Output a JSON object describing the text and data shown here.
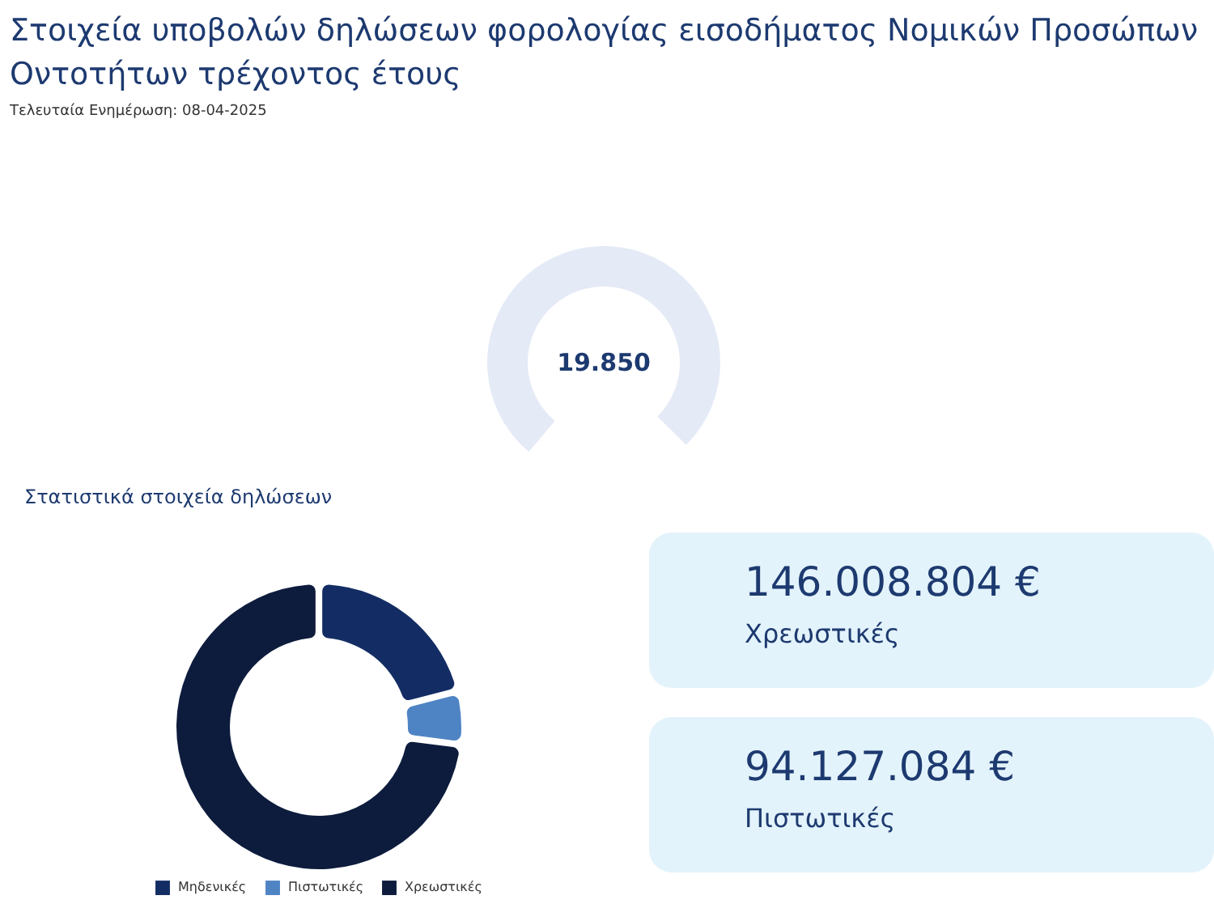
{
  "chart_data": [
    {
      "type": "other",
      "title": "Στοιχεία υποβολών δηλώσεων φορολογίας εισοδήματος Νομικών Προσώπων Οντοτήτων τρέχοντος έτους",
      "subtitle": "Τελευταία Ενημέρωση: 08-04-2025",
      "annotations": [
        "19.850"
      ]
    },
    {
      "type": "donut",
      "title": "Στατιστικά στοιχεία δηλώσεων",
      "categories": [
        "Μηδενικές",
        "Πιστωτικές",
        "Χρεωστικές"
      ],
      "values": [
        21,
        6,
        73
      ],
      "colors": [
        "#132d64",
        "#4f84c4",
        "#0d1c3d"
      ],
      "legend": "bottom"
    },
    {
      "type": "other",
      "annotations": [
        "146.008.804 €",
        "Χρεωστικές",
        "94.127.084 €",
        "Πιστωτικές"
      ]
    }
  ]
}
